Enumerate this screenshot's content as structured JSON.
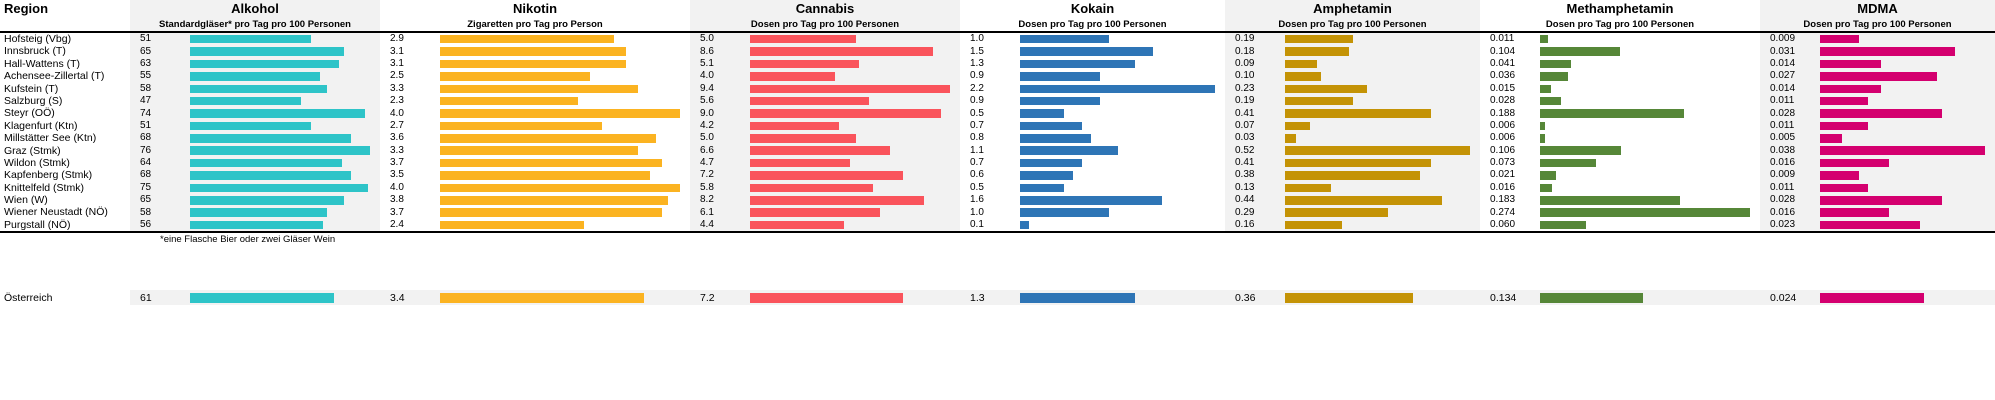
{
  "table": {
    "region_header": "Region",
    "footnote": "*eine Flasche Bier oder zwei Gläser Wein",
    "austria_label": "Österreich",
    "shaded_bg": "#F2F2F2",
    "columns": [
      {
        "name": "Alkohol",
        "subtitle": "Standardgläser* pro Tag pro 100 Personen",
        "color": "#2EC4C8",
        "axis_max": 76,
        "shaded": true
      },
      {
        "name": "Nikotin",
        "subtitle": "Zigaretten pro Tag pro Person",
        "color": "#FBB321",
        "axis_max": 4.0,
        "shaded": false
      },
      {
        "name": "Cannabis",
        "subtitle": "Dosen pro Tag pro 100 Personen",
        "color": "#FA545C",
        "axis_max": 9.4,
        "shaded": true
      },
      {
        "name": "Kokain",
        "subtitle": "Dosen pro Tag pro 100 Personen",
        "color": "#2E75B6",
        "axis_max": 2.2,
        "shaded": false
      },
      {
        "name": "Amphetamin",
        "subtitle": "Dosen pro Tag pro 100 Personen",
        "color": "#C49306",
        "axis_max": 0.52,
        "shaded": true
      },
      {
        "name": "Methamphetamin",
        "subtitle": "Dosen pro Tag pro 100 Personen",
        "color": "#568738",
        "axis_max": 0.274,
        "shaded": false
      },
      {
        "name": "MDMA",
        "subtitle": "Dosen pro Tag pro 100 Personen",
        "color": "#D4006F",
        "axis_max": 0.038,
        "shaded": true
      }
    ],
    "rows": [
      {
        "region": "Hofsteig (Vbg)",
        "values": [
          "51",
          "2.9",
          "5.0",
          "1.0",
          "0.19",
          "0.011",
          "0.009"
        ]
      },
      {
        "region": "Innsbruck (T)",
        "values": [
          "65",
          "3.1",
          "8.6",
          "1.5",
          "0.18",
          "0.104",
          "0.031"
        ]
      },
      {
        "region": "Hall-Wattens (T)",
        "values": [
          "63",
          "3.1",
          "5.1",
          "1.3",
          "0.09",
          "0.041",
          "0.014"
        ]
      },
      {
        "region": "Achensee-Zillertal (T)",
        "values": [
          "55",
          "2.5",
          "4.0",
          "0.9",
          "0.10",
          "0.036",
          "0.027"
        ]
      },
      {
        "region": "Kufstein (T)",
        "values": [
          "58",
          "3.3",
          "9.4",
          "2.2",
          "0.23",
          "0.015",
          "0.014"
        ]
      },
      {
        "region": "Salzburg (S)",
        "values": [
          "47",
          "2.3",
          "5.6",
          "0.9",
          "0.19",
          "0.028",
          "0.011"
        ]
      },
      {
        "region": "Steyr (OÖ)",
        "values": [
          "74",
          "4.0",
          "9.0",
          "0.5",
          "0.41",
          "0.188",
          "0.028"
        ]
      },
      {
        "region": "Klagenfurt (Ktn)",
        "values": [
          "51",
          "2.7",
          "4.2",
          "0.7",
          "0.07",
          "0.006",
          "0.011"
        ]
      },
      {
        "region": "Millstätter See (Ktn)",
        "values": [
          "68",
          "3.6",
          "5.0",
          "0.8",
          "0.03",
          "0.006",
          "0.005"
        ]
      },
      {
        "region": "Graz (Stmk)",
        "values": [
          "76",
          "3.3",
          "6.6",
          "1.1",
          "0.52",
          "0.106",
          "0.038"
        ]
      },
      {
        "region": "Wildon (Stmk)",
        "values": [
          "64",
          "3.7",
          "4.7",
          "0.7",
          "0.41",
          "0.073",
          "0.016"
        ]
      },
      {
        "region": "Kapfenberg (Stmk)",
        "values": [
          "68",
          "3.5",
          "7.2",
          "0.6",
          "0.38",
          "0.021",
          "0.009"
        ]
      },
      {
        "region": "Knittelfeld (Stmk)",
        "values": [
          "75",
          "4.0",
          "5.8",
          "0.5",
          "0.13",
          "0.016",
          "0.011"
        ]
      },
      {
        "region": "Wien (W)",
        "values": [
          "65",
          "3.8",
          "8.2",
          "1.6",
          "0.44",
          "0.183",
          "0.028"
        ]
      },
      {
        "region": "Wiener Neustadt (NÖ)",
        "values": [
          "58",
          "3.7",
          "6.1",
          "1.0",
          "0.29",
          "0.274",
          "0.016"
        ]
      },
      {
        "region": "Purgstall (NÖ)",
        "values": [
          "56",
          "2.4",
          "4.4",
          "0.1",
          "0.16",
          "0.060",
          "0.023"
        ]
      }
    ],
    "austria_values": [
      "61",
      "3.4",
      "7.2",
      "1.3",
      "0.36",
      "0.134",
      "0.024"
    ]
  },
  "chart_data": {
    "type": "bar",
    "orientation": "horizontal",
    "title": "",
    "footnote": "*eine Flasche Bier oder zwei Gläser Wein",
    "categories": [
      "Hofsteig (Vbg)",
      "Innsbruck (T)",
      "Hall-Wattens (T)",
      "Achensee-Zillertal (T)",
      "Kufstein (T)",
      "Salzburg (S)",
      "Steyr (OÖ)",
      "Klagenfurt (Ktn)",
      "Millstätter See (Ktn)",
      "Graz (Stmk)",
      "Wildon (Stmk)",
      "Kapfenberg (Stmk)",
      "Knittelfeld (Stmk)",
      "Wien (W)",
      "Wiener Neustadt (NÖ)",
      "Purgstall (NÖ)"
    ],
    "series": [
      {
        "name": "Alkohol",
        "unit": "Standardgläser* pro Tag pro 100 Personen",
        "color": "#2EC4C8",
        "xlim": [
          0,
          76
        ],
        "values": [
          51,
          65,
          63,
          55,
          58,
          47,
          74,
          51,
          68,
          76,
          64,
          68,
          75,
          65,
          58,
          56
        ],
        "oesterreich": 61
      },
      {
        "name": "Nikotin",
        "unit": "Zigaretten pro Tag pro Person",
        "color": "#FBB321",
        "xlim": [
          0,
          4.0
        ],
        "values": [
          2.9,
          3.1,
          3.1,
          2.5,
          3.3,
          2.3,
          4.0,
          2.7,
          3.6,
          3.3,
          3.7,
          3.5,
          4.0,
          3.8,
          3.7,
          2.4
        ],
        "oesterreich": 3.4
      },
      {
        "name": "Cannabis",
        "unit": "Dosen pro Tag pro 100 Personen",
        "color": "#FA545C",
        "xlim": [
          0,
          9.4
        ],
        "values": [
          5.0,
          8.6,
          5.1,
          4.0,
          9.4,
          5.6,
          9.0,
          4.2,
          5.0,
          6.6,
          4.7,
          7.2,
          5.8,
          8.2,
          6.1,
          4.4
        ],
        "oesterreich": 7.2
      },
      {
        "name": "Kokain",
        "unit": "Dosen pro Tag pro 100 Personen",
        "color": "#2E75B6",
        "xlim": [
          0,
          2.2
        ],
        "values": [
          1.0,
          1.5,
          1.3,
          0.9,
          2.2,
          0.9,
          0.5,
          0.7,
          0.8,
          1.1,
          0.7,
          0.6,
          0.5,
          1.6,
          1.0,
          0.1
        ],
        "oesterreich": 1.3
      },
      {
        "name": "Amphetamin",
        "unit": "Dosen pro Tag pro 100 Personen",
        "color": "#C49306",
        "xlim": [
          0,
          0.52
        ],
        "values": [
          0.19,
          0.18,
          0.09,
          0.1,
          0.23,
          0.19,
          0.41,
          0.07,
          0.03,
          0.52,
          0.41,
          0.38,
          0.13,
          0.44,
          0.29,
          0.16
        ],
        "oesterreich": 0.36
      },
      {
        "name": "Methamphetamin",
        "unit": "Dosen pro Tag pro 100 Personen",
        "color": "#568738",
        "xlim": [
          0,
          0.274
        ],
        "values": [
          0.011,
          0.104,
          0.041,
          0.036,
          0.015,
          0.028,
          0.188,
          0.006,
          0.006,
          0.106,
          0.073,
          0.021,
          0.016,
          0.183,
          0.274,
          0.06
        ],
        "oesterreich": 0.134
      },
      {
        "name": "MDMA",
        "unit": "Dosen pro Tag pro 100 Personen",
        "color": "#D4006F",
        "xlim": [
          0,
          0.038
        ],
        "values": [
          0.009,
          0.031,
          0.014,
          0.027,
          0.014,
          0.011,
          0.028,
          0.011,
          0.005,
          0.038,
          0.016,
          0.009,
          0.011,
          0.028,
          0.016,
          0.023
        ],
        "oesterreich": 0.024
      },
      {
        "name": "Österreich (summary row)",
        "unit": "",
        "values": [
          61,
          3.4,
          7.2,
          1.3,
          0.36,
          0.134,
          0.024
        ]
      }
    ],
    "legend_position": "none",
    "grid": false
  }
}
